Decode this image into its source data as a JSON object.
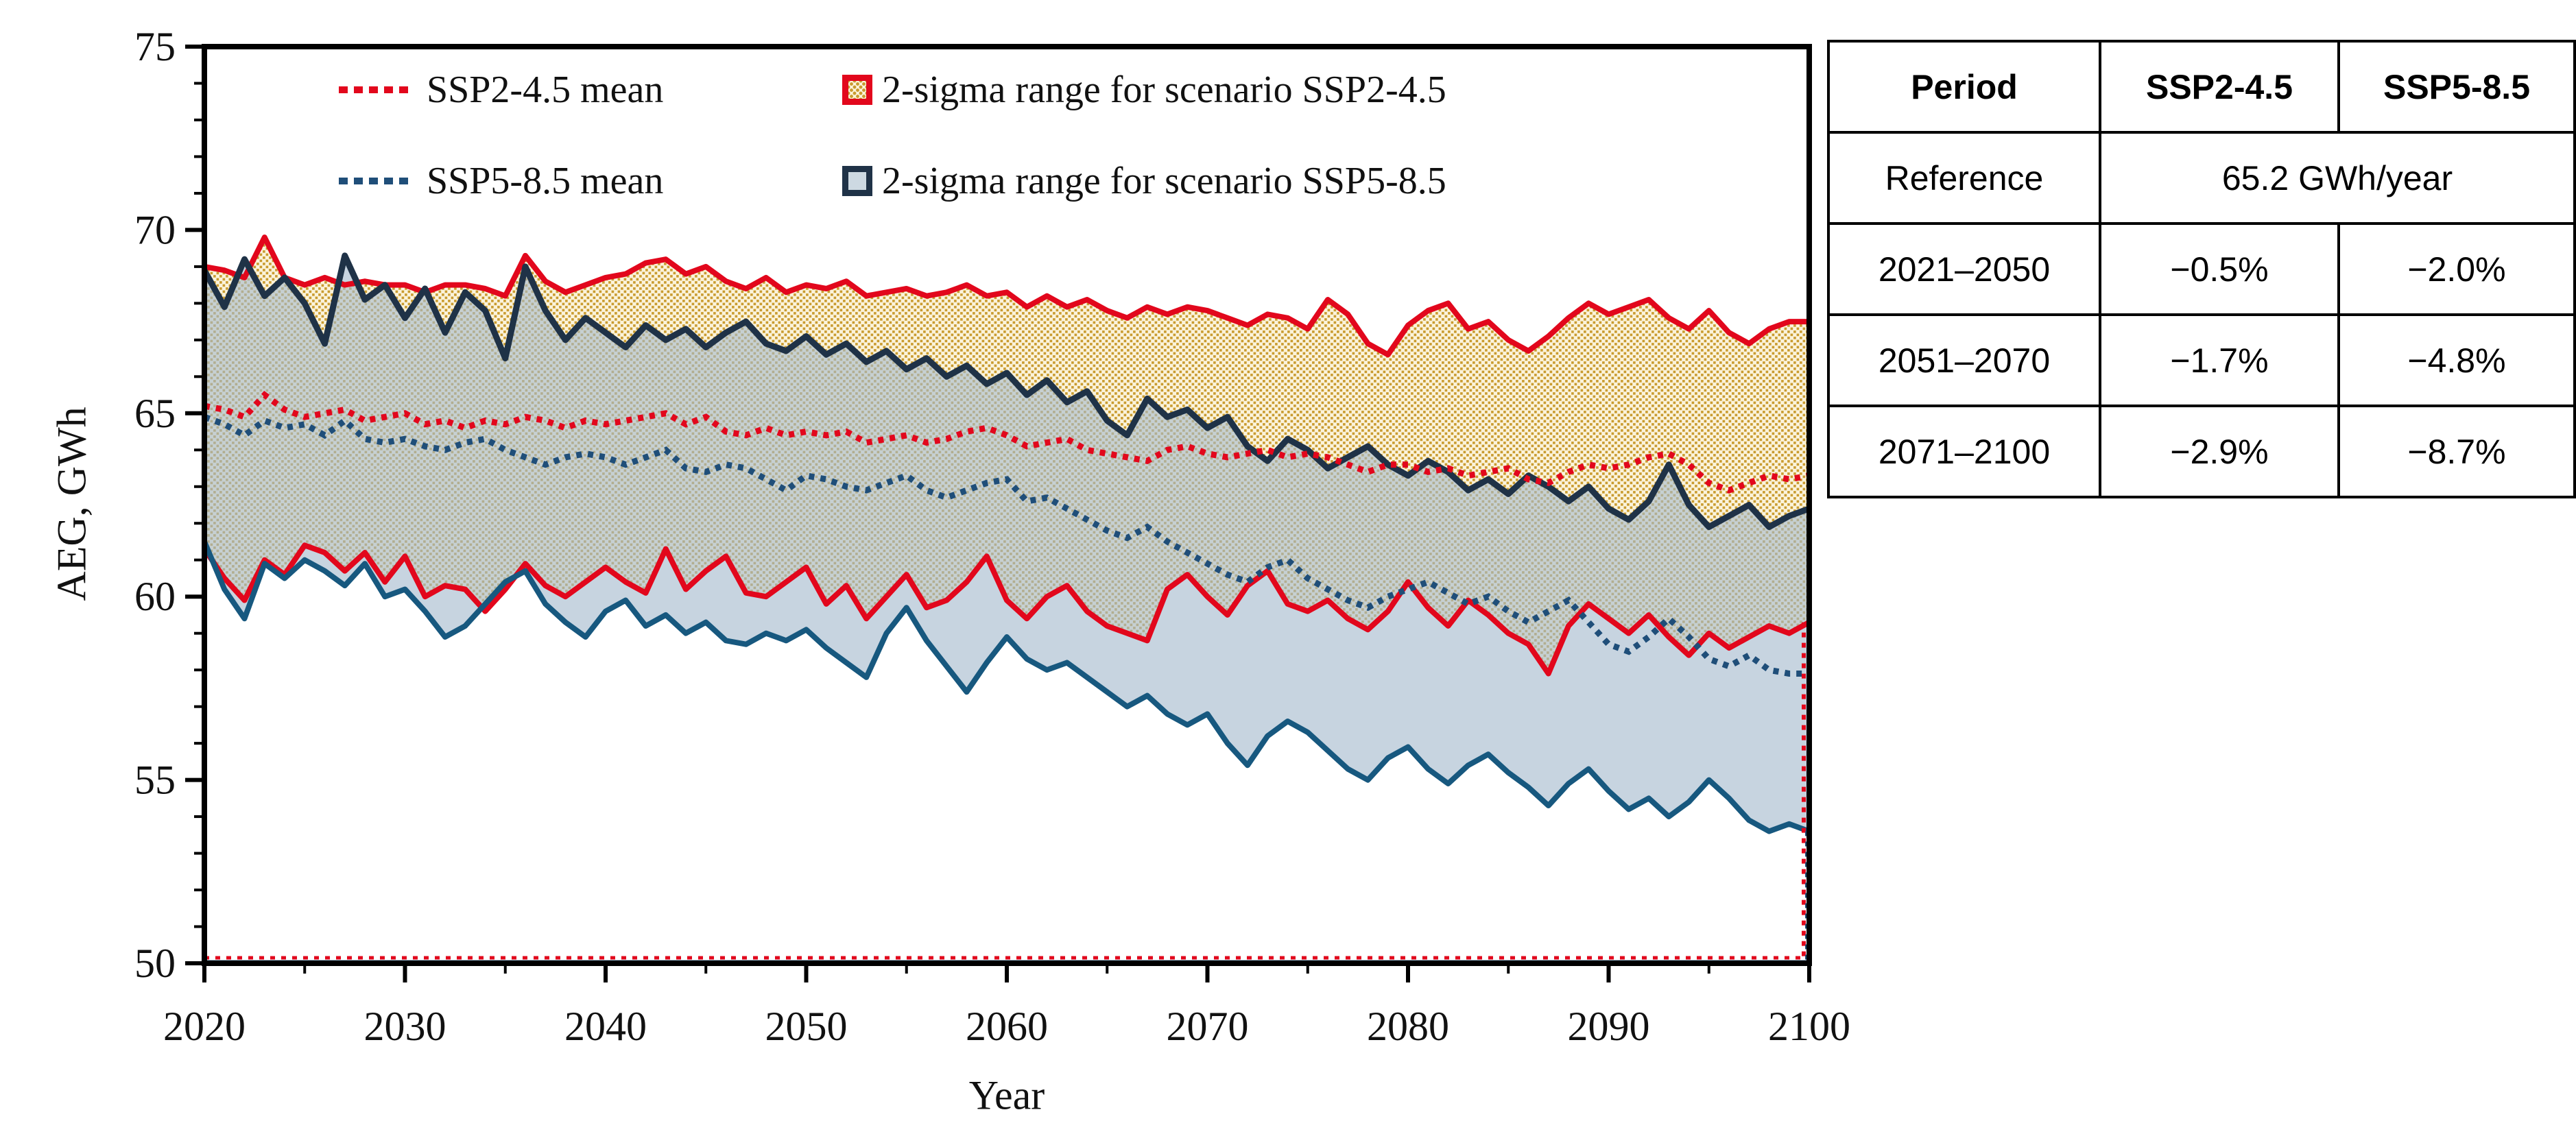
{
  "figure": {
    "background": "#ffffff"
  },
  "axes": {
    "y_title": "AEG, GWh",
    "x_title": "Year"
  },
  "legend": {
    "items": [
      {
        "label": "SSP2-4.5 mean",
        "marker": "red-dotted-line",
        "color": "#E2071C"
      },
      {
        "label": "SSP5-8.5 mean",
        "marker": "blue-dotted-line",
        "color": "#1F4E79"
      },
      {
        "label": "2-sigma range for scenario SSP2-4.5",
        "marker": "red-bordered-dotted-patch",
        "border": "#E2071C"
      },
      {
        "label": "2-sigma range for scenario SSP5-8.5",
        "marker": "navy-bordered-blue-patch",
        "border": "#1F3247"
      }
    ]
  },
  "table": {
    "headers": [
      "Period",
      "SSP2-4.5",
      "SSP5-8.5"
    ],
    "reference_row": {
      "label": "Reference",
      "value": "65.2 GWh/year"
    },
    "rows": [
      {
        "period": "2021–2050",
        "ssp245": "−0.5%",
        "ssp585": "−2.0%"
      },
      {
        "period": "2051–2070",
        "ssp245": "−1.7%",
        "ssp585": "−4.8%"
      },
      {
        "period": "2071–2100",
        "ssp245": "−2.9%",
        "ssp585": "−8.7%"
      }
    ]
  },
  "chart_data": {
    "type": "area",
    "title": "",
    "xlabel": "Year",
    "ylabel": "AEG, GWh",
    "xlim": [
      2020,
      2100
    ],
    "ylim": [
      50,
      75
    ],
    "x_major_ticks": [
      2020,
      2030,
      2040,
      2050,
      2060,
      2070,
      2080,
      2090,
      2100
    ],
    "x_minor_step": 5,
    "y_major_ticks": [
      50,
      55,
      60,
      65,
      70,
      75
    ],
    "y_minor_step": 1,
    "grid": false,
    "legend_position": "top-inside",
    "x": [
      2020,
      2021,
      2022,
      2023,
      2024,
      2025,
      2026,
      2027,
      2028,
      2029,
      2030,
      2031,
      2032,
      2033,
      2034,
      2035,
      2036,
      2037,
      2038,
      2039,
      2040,
      2041,
      2042,
      2043,
      2044,
      2045,
      2046,
      2047,
      2048,
      2049,
      2050,
      2051,
      2052,
      2053,
      2054,
      2055,
      2056,
      2057,
      2058,
      2059,
      2060,
      2061,
      2062,
      2063,
      2064,
      2065,
      2066,
      2067,
      2068,
      2069,
      2070,
      2071,
      2072,
      2073,
      2074,
      2075,
      2076,
      2077,
      2078,
      2079,
      2080,
      2081,
      2082,
      2083,
      2084,
      2085,
      2086,
      2087,
      2088,
      2089,
      2090,
      2091,
      2092,
      2093,
      2094,
      2095,
      2096,
      2097,
      2098,
      2099,
      2100
    ],
    "series": [
      {
        "name": "SSP2-4.5 2-sigma upper",
        "values": [
          69.0,
          68.9,
          68.7,
          69.8,
          68.7,
          68.5,
          68.7,
          68.5,
          68.6,
          68.5,
          68.5,
          68.3,
          68.5,
          68.5,
          68.4,
          68.2,
          69.3,
          68.6,
          68.3,
          68.5,
          68.7,
          68.8,
          69.1,
          69.2,
          68.8,
          69.0,
          68.6,
          68.4,
          68.7,
          68.3,
          68.5,
          68.4,
          68.6,
          68.2,
          68.3,
          68.4,
          68.2,
          68.3,
          68.5,
          68.2,
          68.3,
          67.9,
          68.2,
          67.9,
          68.1,
          67.8,
          67.6,
          67.9,
          67.7,
          67.9,
          67.8,
          67.6,
          67.4,
          67.7,
          67.6,
          67.3,
          68.1,
          67.7,
          66.9,
          66.6,
          67.4,
          67.8,
          68.0,
          67.3,
          67.5,
          67.0,
          66.7,
          67.1,
          67.6,
          68.0,
          67.7,
          67.9,
          68.1,
          67.6,
          67.3,
          67.8,
          67.2,
          66.9,
          67.3,
          67.5,
          67.5
        ]
      },
      {
        "name": "SSP2-4.5 2-sigma lower",
        "values": [
          61.3,
          60.5,
          59.9,
          61.0,
          60.6,
          61.4,
          61.2,
          60.7,
          61.2,
          60.4,
          61.1,
          60.0,
          60.3,
          60.2,
          59.6,
          60.2,
          60.9,
          60.3,
          60.0,
          60.4,
          60.8,
          60.4,
          60.1,
          61.3,
          60.2,
          60.7,
          61.1,
          60.1,
          60.0,
          60.4,
          60.8,
          59.8,
          60.3,
          59.4,
          60.0,
          60.6,
          59.7,
          59.9,
          60.4,
          61.1,
          59.9,
          59.4,
          60.0,
          60.3,
          59.6,
          59.2,
          59.0,
          58.8,
          60.2,
          60.6,
          60.0,
          59.5,
          60.3,
          60.7,
          59.8,
          59.6,
          59.9,
          59.4,
          59.1,
          59.6,
          60.4,
          59.7,
          59.2,
          59.9,
          59.5,
          59.0,
          58.7,
          57.9,
          59.2,
          59.8,
          59.4,
          59.0,
          59.5,
          58.9,
          58.4,
          59.0,
          58.6,
          58.9,
          59.2,
          59.0,
          59.3
        ]
      },
      {
        "name": "SSP2-4.5 mean",
        "values": [
          65.2,
          65.1,
          64.9,
          65.5,
          65.1,
          64.9,
          65.0,
          65.1,
          64.8,
          64.9,
          65.0,
          64.7,
          64.8,
          64.6,
          64.8,
          64.7,
          64.9,
          64.8,
          64.6,
          64.8,
          64.7,
          64.8,
          64.9,
          65.0,
          64.7,
          64.9,
          64.5,
          64.4,
          64.6,
          64.4,
          64.5,
          64.4,
          64.5,
          64.2,
          64.3,
          64.4,
          64.2,
          64.3,
          64.5,
          64.6,
          64.4,
          64.1,
          64.2,
          64.3,
          64.0,
          63.9,
          63.8,
          63.7,
          64.0,
          64.1,
          63.9,
          63.8,
          63.9,
          64.0,
          63.8,
          63.9,
          63.8,
          63.6,
          63.4,
          63.6,
          63.6,
          63.4,
          63.5,
          63.3,
          63.4,
          63.5,
          63.2,
          63.1,
          63.4,
          63.6,
          63.5,
          63.6,
          63.8,
          63.9,
          63.6,
          63.1,
          62.9,
          63.1,
          63.3,
          63.2,
          63.3
        ]
      },
      {
        "name": "SSP5-8.5 2-sigma upper",
        "values": [
          68.9,
          67.9,
          69.2,
          68.2,
          68.7,
          68.0,
          66.9,
          69.3,
          68.1,
          68.5,
          67.6,
          68.4,
          67.2,
          68.3,
          67.8,
          66.5,
          69.0,
          67.8,
          67.0,
          67.6,
          67.2,
          66.8,
          67.4,
          67.0,
          67.3,
          66.8,
          67.2,
          67.5,
          66.9,
          66.7,
          67.1,
          66.6,
          66.9,
          66.4,
          66.7,
          66.2,
          66.5,
          66.0,
          66.3,
          65.8,
          66.1,
          65.5,
          65.9,
          65.3,
          65.6,
          64.8,
          64.4,
          65.4,
          64.9,
          65.1,
          64.6,
          64.9,
          64.1,
          63.7,
          64.3,
          64.0,
          63.5,
          63.8,
          64.1,
          63.6,
          63.3,
          63.7,
          63.4,
          62.9,
          63.2,
          62.8,
          63.3,
          63.0,
          62.6,
          63.0,
          62.4,
          62.1,
          62.6,
          63.6,
          62.5,
          61.9,
          62.2,
          62.5,
          61.9,
          62.2,
          62.4
        ]
      },
      {
        "name": "SSP5-8.5 2-sigma lower",
        "values": [
          61.5,
          60.2,
          59.4,
          60.9,
          60.5,
          61.0,
          60.7,
          60.3,
          60.9,
          60.0,
          60.2,
          59.6,
          58.9,
          59.2,
          59.8,
          60.4,
          60.7,
          59.8,
          59.3,
          58.9,
          59.6,
          59.9,
          59.2,
          59.5,
          59.0,
          59.3,
          58.8,
          58.7,
          59.0,
          58.8,
          59.1,
          58.6,
          58.2,
          57.8,
          59.0,
          59.7,
          58.8,
          58.1,
          57.4,
          58.2,
          58.9,
          58.3,
          58.0,
          58.2,
          57.8,
          57.4,
          57.0,
          57.3,
          56.8,
          56.5,
          56.8,
          56.0,
          55.4,
          56.2,
          56.6,
          56.3,
          55.8,
          55.3,
          55.0,
          55.6,
          55.9,
          55.3,
          54.9,
          55.4,
          55.7,
          55.2,
          54.8,
          54.3,
          54.9,
          55.3,
          54.7,
          54.2,
          54.5,
          54.0,
          54.4,
          55.0,
          54.5,
          53.9,
          53.6,
          53.8,
          53.6
        ]
      },
      {
        "name": "SSP5-8.5 mean",
        "values": [
          64.9,
          64.7,
          64.4,
          64.8,
          64.6,
          64.7,
          64.4,
          64.8,
          64.3,
          64.2,
          64.3,
          64.1,
          64.0,
          64.2,
          64.3,
          64.0,
          63.8,
          63.6,
          63.8,
          63.9,
          63.8,
          63.6,
          63.8,
          64.0,
          63.5,
          63.4,
          63.6,
          63.5,
          63.2,
          62.9,
          63.3,
          63.2,
          63.0,
          62.9,
          63.1,
          63.3,
          62.9,
          62.7,
          62.9,
          63.1,
          63.2,
          62.6,
          62.7,
          62.4,
          62.1,
          61.8,
          61.6,
          61.9,
          61.5,
          61.2,
          60.9,
          60.6,
          60.4,
          60.8,
          61.0,
          60.5,
          60.2,
          59.9,
          59.7,
          60.0,
          60.2,
          60.4,
          60.1,
          59.8,
          60.0,
          59.6,
          59.3,
          59.6,
          59.9,
          59.3,
          58.7,
          58.5,
          58.9,
          59.4,
          58.9,
          58.3,
          58.1,
          58.4,
          58.0,
          57.9,
          57.9
        ]
      }
    ],
    "colors": {
      "ssp245_line": "#E2071C",
      "ssp245_fill_bg": "#FBF3DB",
      "ssp245_fill_dot": "#C99B2F",
      "ssp585_line_upper": "#1F3247",
      "ssp585_line_lower": "#17587F",
      "ssp585_mean": "#1F4E79",
      "ssp585_fill": "#A4BACD",
      "frame": "#000000"
    }
  }
}
